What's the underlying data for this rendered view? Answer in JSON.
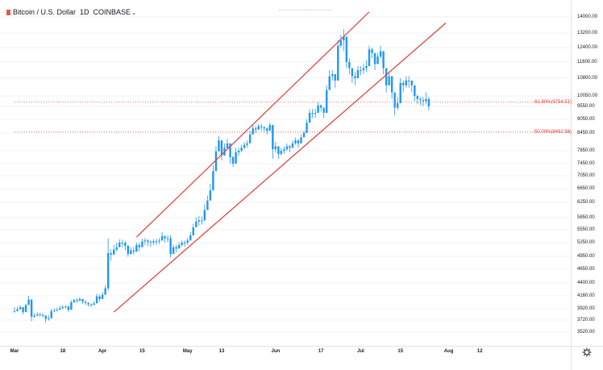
{
  "header": {
    "symbol": "Bitcoin / U.S. Dollar",
    "interval": "1D",
    "exchange": "COINBASE",
    "chevron": "⌄",
    "accent_color": "#ef5350"
  },
  "price_scale": [
    "14000.00",
    "13200.00",
    "12400.00",
    "11600.00",
    "10800.00",
    "10050.00",
    "9550.00",
    "9050.00",
    "8450.00",
    "7850.00",
    "7450.00",
    "7050.00",
    "6650.00",
    "6250.00",
    "5850.00",
    "5550.00",
    "5250.00",
    "4950.00",
    "4650.00",
    "4400.00",
    "4160.00",
    "3920.00",
    "3720.00",
    "3520.00"
  ],
  "time_labels": [
    "Mar",
    "18",
    "Apr",
    "15",
    "May",
    "13",
    "Jun",
    "17",
    "Jul",
    "15",
    "Aug",
    "12"
  ],
  "fib_levels": [
    {
      "label": "61.80%(9754.51)",
      "price": 9754.51
    },
    {
      "label": "50.00%(8492.56)",
      "price": 8492.56
    }
  ],
  "colors": {
    "up": "#2196f3",
    "down": "#2196f3",
    "trendline": "#e53935",
    "fib": "#e53935",
    "grid": "#f0f3fa"
  },
  "icons": {
    "settings": "gear-icon"
  },
  "chart_data": {
    "type": "candlestick",
    "title": "Bitcoin / U.S. Dollar, 1D, COINBASE",
    "xlabel": "",
    "ylabel": "USD",
    "x_range_days": [
      0,
      165
    ],
    "x_ticks": [
      {
        "day": 0,
        "label": "Mar"
      },
      {
        "day": 17,
        "label": "18"
      },
      {
        "day": 31,
        "label": "Apr"
      },
      {
        "day": 45,
        "label": "15"
      },
      {
        "day": 61,
        "label": "May"
      },
      {
        "day": 73,
        "label": "13"
      },
      {
        "day": 92,
        "label": "Jun"
      },
      {
        "day": 108,
        "label": "17"
      },
      {
        "day": 122,
        "label": "Jul"
      },
      {
        "day": 136,
        "label": "15"
      },
      {
        "day": 153,
        "label": "Aug"
      },
      {
        "day": 164,
        "label": "12"
      }
    ],
    "trendlines": [
      {
        "name": "channel-upper",
        "from": {
          "day": 43,
          "price": 5380
        },
        "to": {
          "day": 125,
          "price": 14250
        }
      },
      {
        "name": "channel-lower",
        "from": {
          "day": 35,
          "price": 3860
        },
        "to": {
          "day": 152,
          "price": 13700
        }
      }
    ],
    "fib_levels": [
      {
        "label": "61.80%(9754.51)",
        "price": 9754.51
      },
      {
        "label": "50.00%(8492.56)",
        "price": 8492.56
      }
    ],
    "candles_close": [
      3880,
      3910,
      3950,
      3860,
      3990,
      4090,
      3780,
      3800,
      3820,
      3810,
      3800,
      3740,
      3750,
      3880,
      3890,
      3900,
      3930,
      3950,
      3960,
      3900,
      4040,
      4080,
      4070,
      4100,
      4050,
      4030,
      4000,
      3990,
      4020,
      4150,
      4100,
      4180,
      4300,
      5020,
      4990,
      5100,
      5150,
      5250,
      5250,
      5180,
      5000,
      5080,
      5050,
      5200,
      5150,
      5280,
      5300,
      5270,
      5250,
      5280,
      5280,
      5300,
      5400,
      5350,
      5350,
      5000,
      5150,
      5120,
      5200,
      5250,
      5250,
      5300,
      5420,
      5610,
      5750,
      5780,
      5780,
      6050,
      6300,
      6600,
      7200,
      7830,
      8200,
      7700,
      7950,
      8100,
      7650,
      7450,
      7800,
      7850,
      7950,
      8050,
      8100,
      8400,
      8650,
      8600,
      8750,
      8700,
      8650,
      8550,
      8800,
      7900,
      8000,
      7750,
      7850,
      7900,
      8000,
      7950,
      8100,
      8200,
      8100,
      8300,
      8450,
      8900,
      9300,
      9300,
      9300,
      9600,
      9500,
      9300,
      10300,
      10900,
      11000,
      10700,
      12500,
      12800,
      13000,
      11600,
      11300,
      10900,
      10800,
      11200,
      11200,
      11300,
      11400,
      12300,
      12100,
      11500,
      11900,
      12200,
      11300,
      10500,
      10900,
      10200,
      9500,
      9700,
      10600,
      10500,
      10700,
      10700,
      10500,
      10050,
      9900,
      9850,
      9800,
      9900,
      9550
    ],
    "candles_start_day": 0,
    "candles_wicks": [
      [
        3850,
        3950
      ],
      [
        3870,
        3960
      ],
      [
        3920,
        3990
      ],
      [
        3820,
        3950
      ],
      [
        3940,
        4010
      ],
      [
        4030,
        4160
      ],
      [
        3700,
        4100
      ],
      [
        3760,
        3840
      ],
      [
        3790,
        3860
      ],
      [
        3780,
        3850
      ],
      [
        3770,
        3840
      ],
      [
        3680,
        3800
      ],
      [
        3710,
        3810
      ],
      [
        3830,
        3920
      ],
      [
        3860,
        3930
      ],
      [
        3870,
        3940
      ],
      [
        3900,
        3980
      ],
      [
        3920,
        3990
      ],
      [
        3930,
        3990
      ],
      [
        3860,
        3980
      ],
      [
        3990,
        4080
      ],
      [
        4030,
        4110
      ],
      [
        4030,
        4120
      ],
      [
        4060,
        4130
      ],
      [
        4010,
        4100
      ],
      [
        3990,
        4080
      ],
      [
        3960,
        4040
      ],
      [
        3950,
        4020
      ],
      [
        3990,
        4060
      ],
      [
        4100,
        4200
      ],
      [
        4050,
        4180
      ],
      [
        4120,
        4230
      ],
      [
        4250,
        4350
      ],
      [
        4250,
        5350
      ],
      [
        4850,
        5100
      ],
      [
        4980,
        5200
      ],
      [
        5050,
        5250
      ],
      [
        5150,
        5330
      ],
      [
        5150,
        5320
      ],
      [
        5080,
        5280
      ],
      [
        4940,
        5200
      ],
      [
        4990,
        5150
      ],
      [
        4980,
        5150
      ],
      [
        5100,
        5250
      ],
      [
        5060,
        5250
      ],
      [
        5200,
        5340
      ],
      [
        5200,
        5360
      ],
      [
        5180,
        5330
      ],
      [
        5160,
        5310
      ],
      [
        5200,
        5330
      ],
      [
        5200,
        5340
      ],
      [
        5220,
        5360
      ],
      [
        5300,
        5500
      ],
      [
        5250,
        5420
      ],
      [
        5260,
        5420
      ],
      [
        4920,
        5420
      ],
      [
        5050,
        5200
      ],
      [
        5030,
        5200
      ],
      [
        5120,
        5260
      ],
      [
        5160,
        5300
      ],
      [
        5160,
        5300
      ],
      [
        5200,
        5360
      ],
      [
        5320,
        5500
      ],
      [
        5500,
        5700
      ],
      [
        5650,
        5850
      ],
      [
        5650,
        5900
      ],
      [
        5680,
        5880
      ],
      [
        5900,
        6200
      ],
      [
        6150,
        6450
      ],
      [
        6400,
        6800
      ],
      [
        6900,
        7400
      ],
      [
        7500,
        8000
      ],
      [
        7900,
        8350
      ],
      [
        7550,
        8000
      ],
      [
        7800,
        8100
      ],
      [
        7900,
        8250
      ],
      [
        7450,
        8100
      ],
      [
        7350,
        7700
      ],
      [
        7600,
        7950
      ],
      [
        7700,
        7950
      ],
      [
        7800,
        8050
      ],
      [
        7900,
        8150
      ],
      [
        7950,
        8200
      ],
      [
        8250,
        8550
      ],
      [
        8400,
        8800
      ],
      [
        8450,
        8750
      ],
      [
        8600,
        8850
      ],
      [
        8550,
        8850
      ],
      [
        8500,
        8750
      ],
      [
        8400,
        8700
      ],
      [
        8650,
        8900
      ],
      [
        7600,
        8800
      ],
      [
        7800,
        8150
      ],
      [
        7600,
        7950
      ],
      [
        7700,
        7950
      ],
      [
        7750,
        8000
      ],
      [
        7850,
        8100
      ],
      [
        7800,
        8050
      ],
      [
        7950,
        8200
      ],
      [
        8050,
        8300
      ],
      [
        7950,
        8250
      ],
      [
        8150,
        8400
      ],
      [
        8300,
        8550
      ],
      [
        8700,
        9050
      ],
      [
        9000,
        9450
      ],
      [
        9100,
        9450
      ],
      [
        9100,
        9450
      ],
      [
        9400,
        9750
      ],
      [
        9350,
        9650
      ],
      [
        9100,
        9500
      ],
      [
        10000,
        10500
      ],
      [
        10600,
        11200
      ],
      [
        10700,
        11200
      ],
      [
        10400,
        11000
      ],
      [
        12000,
        12800
      ],
      [
        12400,
        13100
      ],
      [
        12200,
        13400
      ],
      [
        11300,
        12400
      ],
      [
        11000,
        11800
      ],
      [
        10600,
        11200
      ],
      [
        10500,
        11100
      ],
      [
        10900,
        11400
      ],
      [
        10950,
        11400
      ],
      [
        11000,
        11500
      ],
      [
        11100,
        11700
      ],
      [
        11900,
        12500
      ],
      [
        11800,
        12400
      ],
      [
        11200,
        11800
      ],
      [
        11600,
        12100
      ],
      [
        11800,
        12500
      ],
      [
        11000,
        12200
      ],
      [
        10200,
        11200
      ],
      [
        10500,
        11100
      ],
      [
        9900,
        10500
      ],
      [
        9200,
        10100
      ],
      [
        9400,
        10000
      ],
      [
        10300,
        10800
      ],
      [
        10200,
        10700
      ],
      [
        10400,
        10900
      ],
      [
        10400,
        10900
      ],
      [
        10200,
        10700
      ],
      [
        9800,
        10300
      ],
      [
        9650,
        10100
      ],
      [
        9600,
        10000
      ],
      [
        9550,
        10000
      ],
      [
        9650,
        10200
      ],
      [
        9400,
        10000
      ]
    ]
  }
}
